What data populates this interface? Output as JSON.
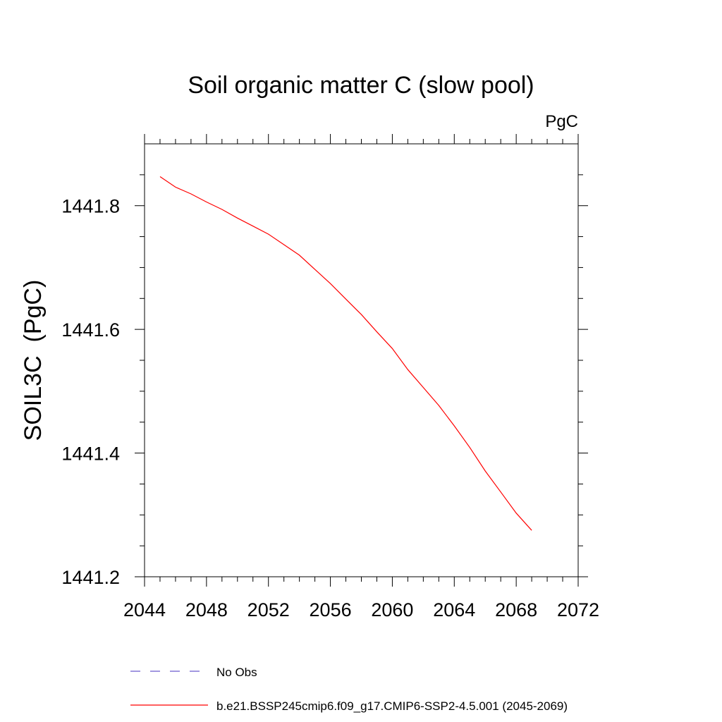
{
  "chart_data": {
    "type": "line",
    "title": "Soil organic matter C (slow pool)",
    "units": "PgC",
    "xlabel": "",
    "ylabel": "SOIL3C  (PgC)",
    "xlim": [
      2044,
      2072
    ],
    "ylim": [
      1441.2,
      1441.9
    ],
    "x_ticks": [
      2044,
      2048,
      2052,
      2056,
      2060,
      2064,
      2068,
      2072
    ],
    "x_tick_labels": [
      "2044",
      "2048",
      "2052",
      "2056",
      "2060",
      "2064",
      "2068",
      "2072"
    ],
    "x_minor_step": 1,
    "y_ticks": [
      1441.2,
      1441.4,
      1441.6,
      1441.8
    ],
    "y_tick_labels": [
      "1441.2",
      "1441.4",
      "1441.6",
      "1441.8"
    ],
    "y_minor_step": 0.05,
    "grid": false,
    "legend_position": "bottom",
    "series": [
      {
        "name": "b.e21.BSSP245cmip6.f09_g17.CMIP6-SSP2-4.5.001 (2045-2069)",
        "color": "#ff0000",
        "style": "solid",
        "x": [
          2045,
          2046,
          2047,
          2048,
          2049,
          2050,
          2051,
          2052,
          2053,
          2054,
          2055,
          2056,
          2057,
          2058,
          2059,
          2060,
          2061,
          2062,
          2063,
          2064,
          2065,
          2066,
          2067,
          2068,
          2069
        ],
        "values": [
          1441.847,
          1441.83,
          1441.819,
          1441.806,
          1441.794,
          1441.78,
          1441.767,
          1441.754,
          1441.737,
          1441.72,
          1441.697,
          1441.674,
          1441.649,
          1441.624,
          1441.596,
          1441.569,
          1441.535,
          1441.506,
          1441.477,
          1441.444,
          1441.409,
          1441.371,
          1441.337,
          1441.303,
          1441.275
        ]
      }
    ],
    "legend": [
      {
        "label": "No Obs",
        "color": "#6a5acd",
        "style": "dashed"
      },
      {
        "label": "b.e21.BSSP245cmip6.f09_g17.CMIP6-SSP2-4.5.001 (2045-2069)",
        "color": "#ff0000",
        "style": "solid"
      }
    ]
  }
}
